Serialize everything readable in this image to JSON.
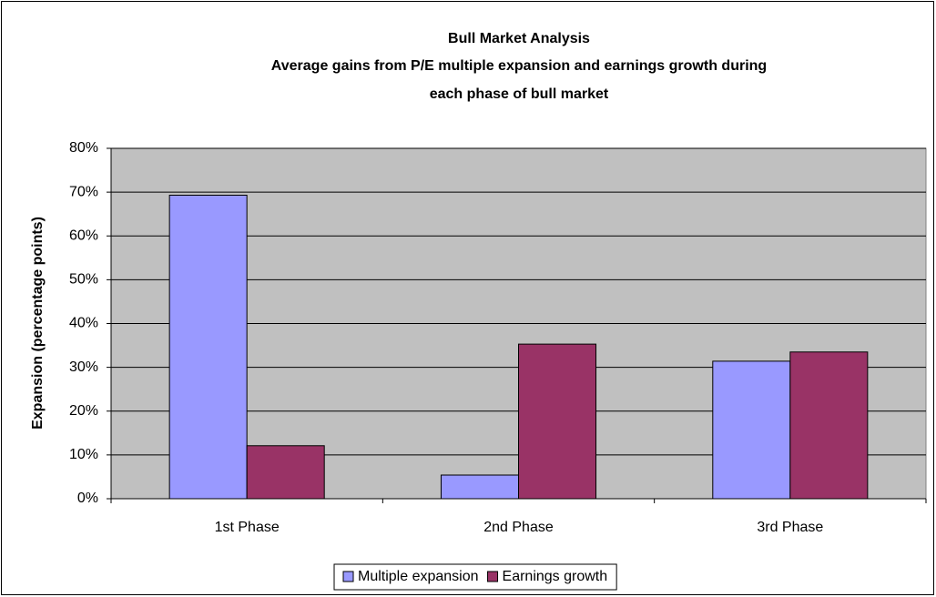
{
  "chart_data": {
    "type": "bar",
    "title": "Bull Market Analysis",
    "subtitle": [
      "Average gains from P/E multiple expansion and earnings growth during",
      "each phase of bull market"
    ],
    "y_label": "Expansion (percentage points)",
    "categories": [
      "1st Phase",
      "2nd Phase",
      "3rd Phase"
    ],
    "series": [
      {
        "name": "Multiple expansion",
        "color": "#9999ff",
        "values": [
          69.3,
          5.4,
          31.4
        ]
      },
      {
        "name": "Earnings growth",
        "color": "#993366",
        "values": [
          12.1,
          35.3,
          33.5
        ]
      }
    ],
    "ylim": [
      0,
      80
    ],
    "yticks": [
      {
        "value": 0,
        "label": "0%"
      },
      {
        "value": 10,
        "label": "10%"
      },
      {
        "value": 20,
        "label": "20%"
      },
      {
        "value": 30,
        "label": "30%"
      },
      {
        "value": 40,
        "label": "40%"
      },
      {
        "value": 50,
        "label": "50%"
      },
      {
        "value": 60,
        "label": "60%"
      },
      {
        "value": 70,
        "label": "70%"
      },
      {
        "value": 80,
        "label": "80%"
      }
    ],
    "grid": true,
    "legend": "bottom"
  }
}
